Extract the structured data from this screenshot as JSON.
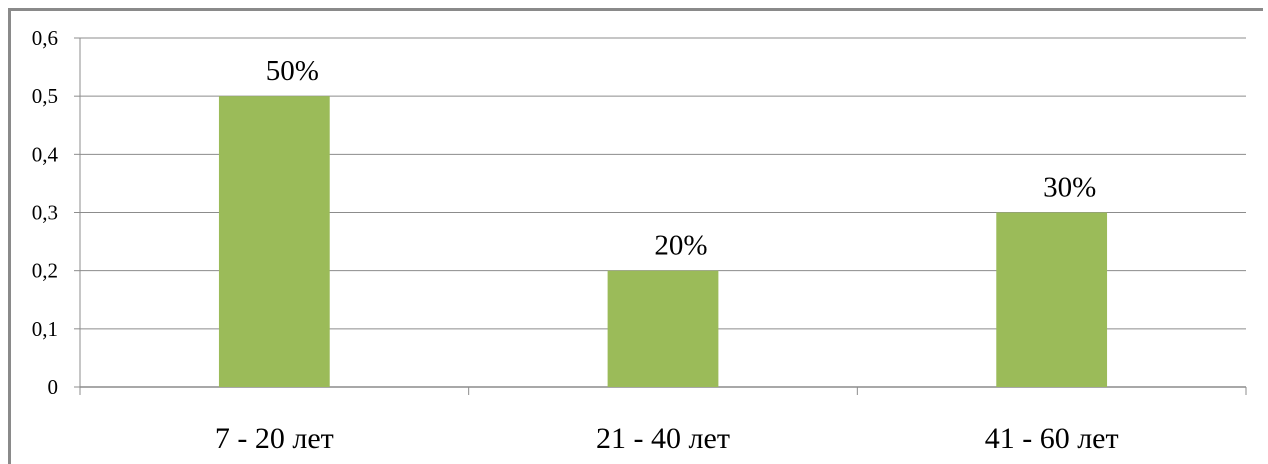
{
  "chart_data": {
    "type": "bar",
    "categories": [
      "7 - 20 лет",
      "21 - 40 лет",
      "41 - 60 лет"
    ],
    "values": [
      0.5,
      0.2,
      0.3
    ],
    "data_labels": [
      "50%",
      "20%",
      "30%"
    ],
    "y_ticks": [
      "0",
      "0,1",
      "0,2",
      "0,3",
      "0,4",
      "0,5",
      "0,6"
    ],
    "ylim": [
      0,
      0.6
    ],
    "grid": true,
    "bar_color": "#9BBB59",
    "gridline_color": "#8C8C8C"
  }
}
